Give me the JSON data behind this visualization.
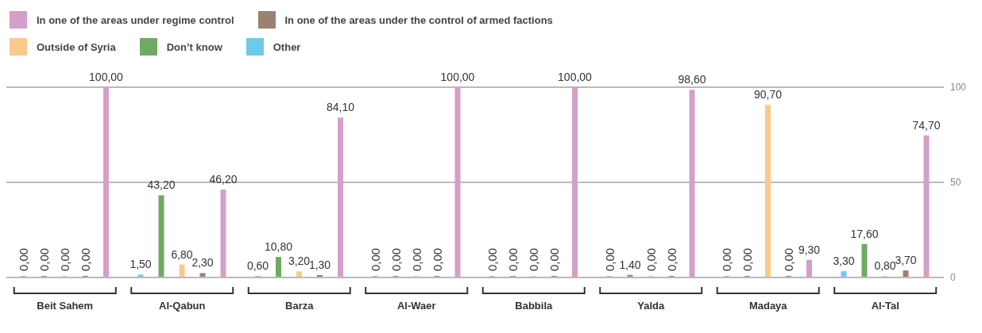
{
  "chart_data": {
    "type": "bar",
    "categories": [
      "Beit Sahem",
      "Al-Qabun",
      "Barza",
      "Al-Waer",
      "Babbila",
      "Yalda",
      "Madaya",
      "Al-Tal"
    ],
    "series": [
      {
        "name": "In one of the areas under regime control",
        "color": "#d49fc9",
        "values": [
          100,
          46.2,
          84.1,
          100,
          100,
          98.6,
          9.3,
          74.7
        ],
        "value_labels": [
          "100,00",
          "46,20",
          "84,10",
          "100,00",
          "100,00",
          "98,60",
          "9,30",
          "74,70"
        ]
      },
      {
        "name": "In one of the areas under the control of armed factions",
        "color": "#9a8172",
        "values": [
          0,
          2.3,
          1.3,
          0,
          0,
          0,
          0,
          3.7
        ],
        "value_labels": [
          "0,00",
          "2,30",
          "1,30",
          "0,00",
          "0,00",
          "0,00",
          "0,00",
          "3,70"
        ]
      },
      {
        "name": "Outside of Syria",
        "color": "#f9ca8c",
        "values": [
          0,
          6.8,
          3.2,
          0,
          0,
          0,
          90.7,
          0.8
        ],
        "value_labels": [
          "0,00",
          "6,80",
          "3,20",
          "0,00",
          "0,00",
          "0,00",
          "90,70",
          "0,80"
        ]
      },
      {
        "name": "Don’t know",
        "color": "#6dab62",
        "values": [
          0,
          43.2,
          10.8,
          0,
          0,
          1.4,
          0,
          17.6
        ],
        "value_labels": [
          "0,00",
          "43,20",
          "10,80",
          "0,00",
          "0,00",
          "1,40",
          "0,00",
          "17,60"
        ]
      },
      {
        "name": "Other",
        "color": "#6ccbec",
        "values": [
          0,
          1.5,
          0.6,
          0,
          0,
          0,
          0,
          3.3
        ],
        "value_labels": [
          "0,00",
          "1,50",
          "0,60",
          "0,00",
          "0,00",
          "0,00",
          "0,00",
          "3,30"
        ]
      }
    ],
    "ylim": [
      0,
      100
    ],
    "yticks": [
      0,
      50,
      100
    ],
    "grid": "y",
    "legend": "top left"
  }
}
